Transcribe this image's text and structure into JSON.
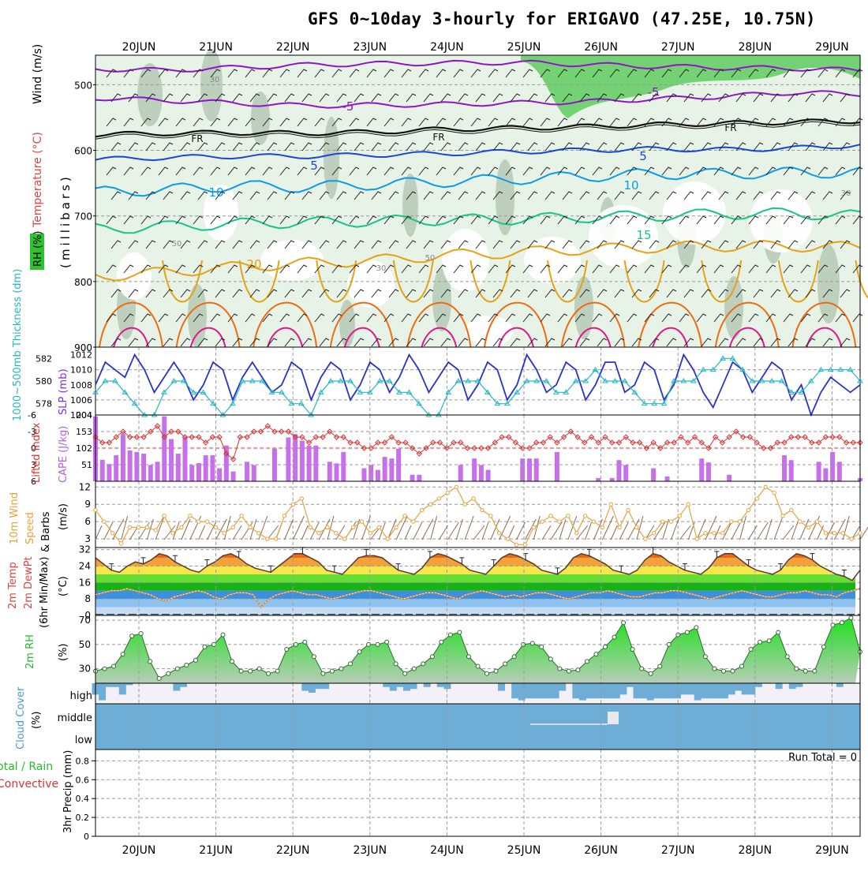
{
  "title": "GFS 0~10day 3-hourly for ERIGAVO (47.25E, 10.75N)",
  "colors": {
    "purple": "#8f16c6",
    "blue": "#1846d8",
    "cyan": "#0d9ae8",
    "green": "#16c488",
    "gold": "#e6a116",
    "orange": "#ee6c10",
    "magenta": "#e0188a",
    "slp": "#2a32c8",
    "thick": "#26b6c6",
    "cape": "#c770ec",
    "li": "#d83434",
    "wind": "#e7a23c",
    "rh": "#27b82c",
    "cloud": "#6eaed6"
  },
  "chart_data": [
    {
      "type": "heatmap",
      "name": "upper-air",
      "ylabel_parts": [
        "RH (%)",
        "Temperature (°C)",
        "Wind (m/s)"
      ],
      "ylabel2": "(millibars)",
      "pressure_ticks": [
        500,
        600,
        700,
        800,
        900
      ],
      "ylim": [
        455,
        900
      ],
      "dates": [
        "20JUN",
        "21JUN",
        "22JUN",
        "23JUN",
        "24JUN",
        "25JUN",
        "26JUN",
        "27JUN",
        "28JUN",
        "29JUN"
      ],
      "contour_labels": [
        "-5",
        "-5",
        "FR",
        "FR",
        "FR",
        "5",
        "5",
        "10",
        "10",
        "15",
        "20",
        "50",
        "50",
        "30",
        "30",
        "30"
      ],
      "isotherms": [
        {
          "label": "-5",
          "p": [
            476,
            478,
            474,
            470,
            468,
            467,
            466,
            469,
            472,
            474,
            475,
            478
          ]
        },
        {
          "label": "-5",
          "p": [
            520,
            524,
            528,
            532,
            531,
            530,
            528,
            526,
            522,
            518,
            512,
            514
          ]
        },
        {
          "label": "FR",
          "p": [
            576,
            574,
            573,
            574,
            572,
            568,
            566,
            564,
            561,
            559,
            557,
            555
          ]
        },
        {
          "label": "5",
          "p": [
            614,
            611,
            609,
            609,
            607,
            605,
            602,
            600,
            598,
            599,
            597,
            592
          ]
        },
        {
          "label": "10",
          "p": [
            664,
            660,
            654,
            656,
            652,
            648,
            644,
            640,
            636,
            636,
            634,
            634
          ]
        },
        {
          "label": "15",
          "p": [
            720,
            716,
            712,
            710,
            708,
            706,
            705,
            702,
            700,
            697,
            696,
            700
          ]
        },
        {
          "label": "20",
          "p": [
            792,
            786,
            778,
            772,
            768,
            760,
            756,
            751,
            748,
            746,
            746,
            748
          ]
        }
      ]
    },
    {
      "type": "line",
      "name": "slp-thickness",
      "ylabel_left": "1000~500mb Thickness (dm)",
      "ylabel_right": "SLP (mb)",
      "left_ticks": [
        578,
        580,
        582
      ],
      "right_ticks": [
        1004,
        1006,
        1008,
        1010,
        1012
      ],
      "series": [
        {
          "name": "SLP (mb)",
          "values": [
            1008,
            1011,
            1010,
            1009,
            1012,
            1010,
            1007,
            1009,
            1011,
            1009,
            1006,
            1008,
            1011,
            1010,
            1006,
            1009,
            1011,
            1009,
            1007,
            1008,
            1011,
            1010,
            1006,
            1009,
            1011,
            1010,
            1006,
            1008,
            1011,
            1010,
            1007,
            1009,
            1012,
            1010,
            1007,
            1009,
            1011,
            1010,
            1006,
            1008,
            1011,
            1010,
            1006,
            1008,
            1012,
            1010,
            1007,
            1008,
            1011,
            1010,
            1006,
            1008,
            1011,
            1011,
            1007,
            1008,
            1011,
            1010,
            1006,
            1008,
            1012,
            1010,
            1007,
            1005,
            1008,
            1011,
            1010,
            1007,
            1009,
            1011,
            1010,
            1006,
            1008,
            1004,
            1007,
            1009,
            1008,
            1007,
            1008
          ]
        },
        {
          "name": "Thickness (dm)",
          "values": [
            579,
            580,
            580,
            579,
            578,
            577,
            577,
            579,
            580,
            580,
            579,
            579,
            578,
            577,
            578,
            580,
            580,
            580,
            579,
            579,
            578,
            578,
            577,
            579,
            580,
            580,
            580,
            579,
            579,
            580,
            580,
            579,
            579,
            578,
            577,
            577,
            579,
            580,
            580,
            580,
            579,
            578,
            578,
            579,
            580,
            580,
            580,
            579,
            579,
            580,
            580,
            581,
            580,
            580,
            580,
            579,
            578,
            578,
            578,
            580,
            580,
            580,
            581,
            581,
            582,
            582,
            581,
            580,
            580,
            580,
            580,
            579,
            579,
            580,
            581,
            581,
            581,
            581,
            580
          ]
        }
      ]
    },
    {
      "type": "bar",
      "name": "cape-li",
      "ylabel_left": "Lifted Index",
      "ylabel_right": "CAPE (J/kg)",
      "li_ticks": [
        "-6",
        "-3",
        "0",
        "3",
        "6"
      ],
      "cape_ticks": [
        "204",
        "153",
        "102",
        "51"
      ],
      "cape": [
        200,
        66,
        53,
        80,
        145,
        95,
        90,
        85,
        50,
        60,
        200,
        130,
        85,
        135,
        50,
        56,
        80,
        80,
        40,
        110,
        30,
        0,
        60,
        50,
        0,
        0,
        100,
        0,
        135,
        145,
        125,
        110,
        110,
        0,
        60,
        55,
        90,
        0,
        0,
        40,
        50,
        35,
        75,
        70,
        100,
        0,
        20,
        20,
        0,
        0,
        0,
        0,
        0,
        50,
        0,
        70,
        50,
        35,
        0,
        0,
        0,
        0,
        70,
        70,
        70,
        0,
        0,
        90,
        0,
        0,
        0,
        0,
        0,
        10,
        0,
        10,
        65,
        50,
        0,
        0,
        0,
        40,
        0,
        15,
        0,
        0,
        0,
        0,
        70,
        58,
        0,
        0,
        20,
        0,
        0,
        0,
        0,
        0,
        0,
        0,
        80,
        65,
        0,
        0,
        0,
        60,
        40,
        90,
        60,
        0,
        0,
        10
      ],
      "li": [
        -2,
        -1,
        -1,
        -2,
        -3,
        -2,
        -2,
        -2,
        -3,
        -4,
        -2,
        -3,
        -3,
        -2,
        -2,
        -2,
        -1,
        -2,
        -2,
        1,
        2,
        -2,
        -2,
        -3,
        -3,
        -4,
        -3,
        -3,
        -3,
        -2,
        -2,
        -1,
        -2,
        -2,
        -3,
        -2,
        -2,
        -1,
        -1,
        0,
        0,
        -1,
        -1,
        -2,
        -1,
        -1,
        0,
        1,
        0,
        -1,
        -1,
        0,
        -1,
        -1,
        0,
        0,
        0,
        0,
        -1,
        -2,
        -2,
        -1,
        0,
        0,
        -1,
        -1,
        -2,
        -1,
        -2,
        -3,
        -2,
        -1,
        -2,
        -1,
        -2,
        -1,
        -1,
        -2,
        -1,
        -1,
        0,
        -1,
        0,
        -1,
        -1,
        -2,
        -1,
        -2,
        -1,
        0,
        -2,
        -1,
        -2,
        -3,
        -2,
        -2,
        -1,
        0,
        0,
        -1,
        -1,
        -2,
        -2,
        -2,
        -1,
        -1,
        -2,
        -2,
        -2,
        -1,
        -1,
        -1
      ]
    },
    {
      "type": "line",
      "name": "wind10m",
      "ylabel": "10m Wind Speed & Barbs",
      "unit": "(m/s)",
      "ticks": [
        "12",
        "9",
        "6",
        "3"
      ],
      "values": [
        8,
        6,
        4,
        2.2,
        5,
        5,
        5,
        4.5,
        7,
        4,
        5,
        7,
        6,
        6,
        5,
        4,
        5,
        7,
        5,
        4,
        3,
        3,
        7,
        9,
        10,
        5,
        4,
        5,
        4,
        3,
        5,
        6,
        4,
        5,
        3,
        5,
        7,
        6,
        8,
        9,
        10,
        11,
        12,
        9,
        10,
        8,
        7,
        4,
        3,
        2,
        2,
        5,
        6,
        7,
        6,
        7,
        4,
        7,
        6,
        5,
        9,
        5,
        8,
        5,
        3,
        4,
        6,
        6,
        7,
        9,
        3,
        4,
        4,
        4,
        6,
        6,
        8,
        10,
        12,
        11,
        7,
        8,
        6,
        5,
        6,
        4,
        4,
        4,
        3,
        4
      ]
    },
    {
      "type": "area",
      "name": "temp-dewpt",
      "ylabel": "2m Temp 2m DewPt (6hr Min/Max)",
      "unit": "(°C)",
      "ticks": [
        "32",
        "24",
        "16",
        "8",
        "0"
      ],
      "temp": [
        28,
        25,
        22,
        21,
        24,
        26,
        25,
        27,
        30,
        29,
        26,
        24,
        22,
        21,
        24,
        26,
        29,
        30,
        28,
        25,
        23,
        22,
        21,
        24,
        27,
        30,
        30,
        28,
        26,
        22,
        21,
        20,
        24,
        28,
        29,
        29,
        28,
        25,
        22,
        21,
        20,
        23,
        28,
        30,
        29,
        27,
        25,
        22,
        21,
        20,
        24,
        28,
        30,
        29,
        27,
        25,
        22,
        21,
        20,
        23,
        28,
        30,
        29,
        27,
        25,
        22,
        21,
        20,
        22,
        27,
        30,
        29,
        26,
        24,
        22,
        21,
        20,
        23,
        28,
        30,
        30,
        27,
        24,
        22,
        21,
        20,
        22,
        27,
        30,
        29,
        27,
        24,
        22,
        20,
        19,
        17,
        22
      ],
      "dewpt": [
        10,
        11,
        12,
        12,
        13,
        12,
        11,
        10,
        8,
        7,
        9,
        10,
        11,
        12,
        11,
        9,
        8,
        10,
        11,
        11,
        10,
        4,
        8,
        10,
        11,
        12,
        11,
        10,
        10,
        9,
        8,
        9,
        10,
        11,
        12,
        12,
        11,
        10,
        9,
        8,
        9,
        10,
        11,
        11,
        10,
        9,
        8,
        10,
        11,
        12,
        11,
        10,
        9,
        10,
        9,
        10,
        11,
        11,
        10,
        9,
        8,
        9,
        10,
        11,
        11,
        12,
        11,
        10,
        9,
        9,
        10,
        11,
        11,
        12,
        12,
        11,
        10,
        9,
        8,
        9,
        10,
        11,
        12,
        11,
        10,
        9,
        9,
        10,
        11,
        11,
        12,
        11,
        10,
        10,
        9,
        11,
        12,
        13
      ]
    },
    {
      "type": "area",
      "name": "rh2m",
      "ylabel": "2m RH",
      "unit": "(%)",
      "ticks": [
        "70",
        "50",
        "30"
      ],
      "values": [
        28,
        30,
        32,
        42,
        57,
        59,
        36,
        22,
        26,
        30,
        33,
        37,
        48,
        50,
        58,
        36,
        28,
        28,
        30,
        26,
        28,
        46,
        50,
        52,
        40,
        26,
        28,
        30,
        34,
        44,
        50,
        50,
        52,
        34,
        26,
        30,
        34,
        40,
        52,
        58,
        60,
        40,
        32,
        26,
        28,
        34,
        40,
        50,
        51,
        48,
        38,
        30,
        28,
        29,
        36,
        42,
        48,
        56,
        68,
        46,
        30,
        26,
        32,
        50,
        58,
        60,
        64,
        40,
        30,
        28,
        28,
        32,
        46,
        52,
        53,
        60,
        40,
        30,
        28,
        28,
        48,
        66,
        68,
        72,
        44
      ]
    },
    {
      "type": "bar",
      "name": "cloud-cover",
      "ylabel": "Cloud Cover",
      "unit": "(%)",
      "levels": [
        "high",
        "middle",
        "low"
      ],
      "high": [
        60,
        90,
        20,
        20,
        60,
        10,
        0,
        0,
        0,
        0,
        0,
        0,
        40,
        20,
        0,
        0,
        0,
        0,
        0,
        0,
        0,
        0,
        0,
        0,
        0,
        0,
        0,
        0,
        0,
        0,
        0,
        40,
        50,
        30,
        30,
        0,
        0,
        0,
        0,
        0,
        0,
        0,
        0,
        20,
        40,
        20,
        40,
        30,
        0,
        20,
        0,
        20,
        30,
        0,
        0,
        0,
        0,
        0,
        0,
        0,
        40,
        0,
        80,
        90,
        80,
        80,
        80,
        80,
        80,
        40,
        0,
        80,
        90,
        80,
        80,
        80,
        80,
        80,
        60,
        20,
        80,
        80,
        90,
        80,
        80,
        80,
        80,
        60,
        60,
        90,
        80,
        80,
        80,
        80,
        60,
        40,
        60,
        60,
        20,
        0,
        0,
        30,
        0,
        30,
        20,
        0,
        0,
        0,
        0,
        0,
        20,
        0,
        0,
        0
      ]
    },
    {
      "type": "bar",
      "name": "precip",
      "ylabel": "3hr Precip (mm)",
      "legend": [
        "Total / Rain",
        "Convective"
      ],
      "run_total_label": "Run Total = 0",
      "ticks": [
        "0.8",
        "0.6",
        "0.4",
        "0.2",
        "0"
      ],
      "values": []
    }
  ]
}
